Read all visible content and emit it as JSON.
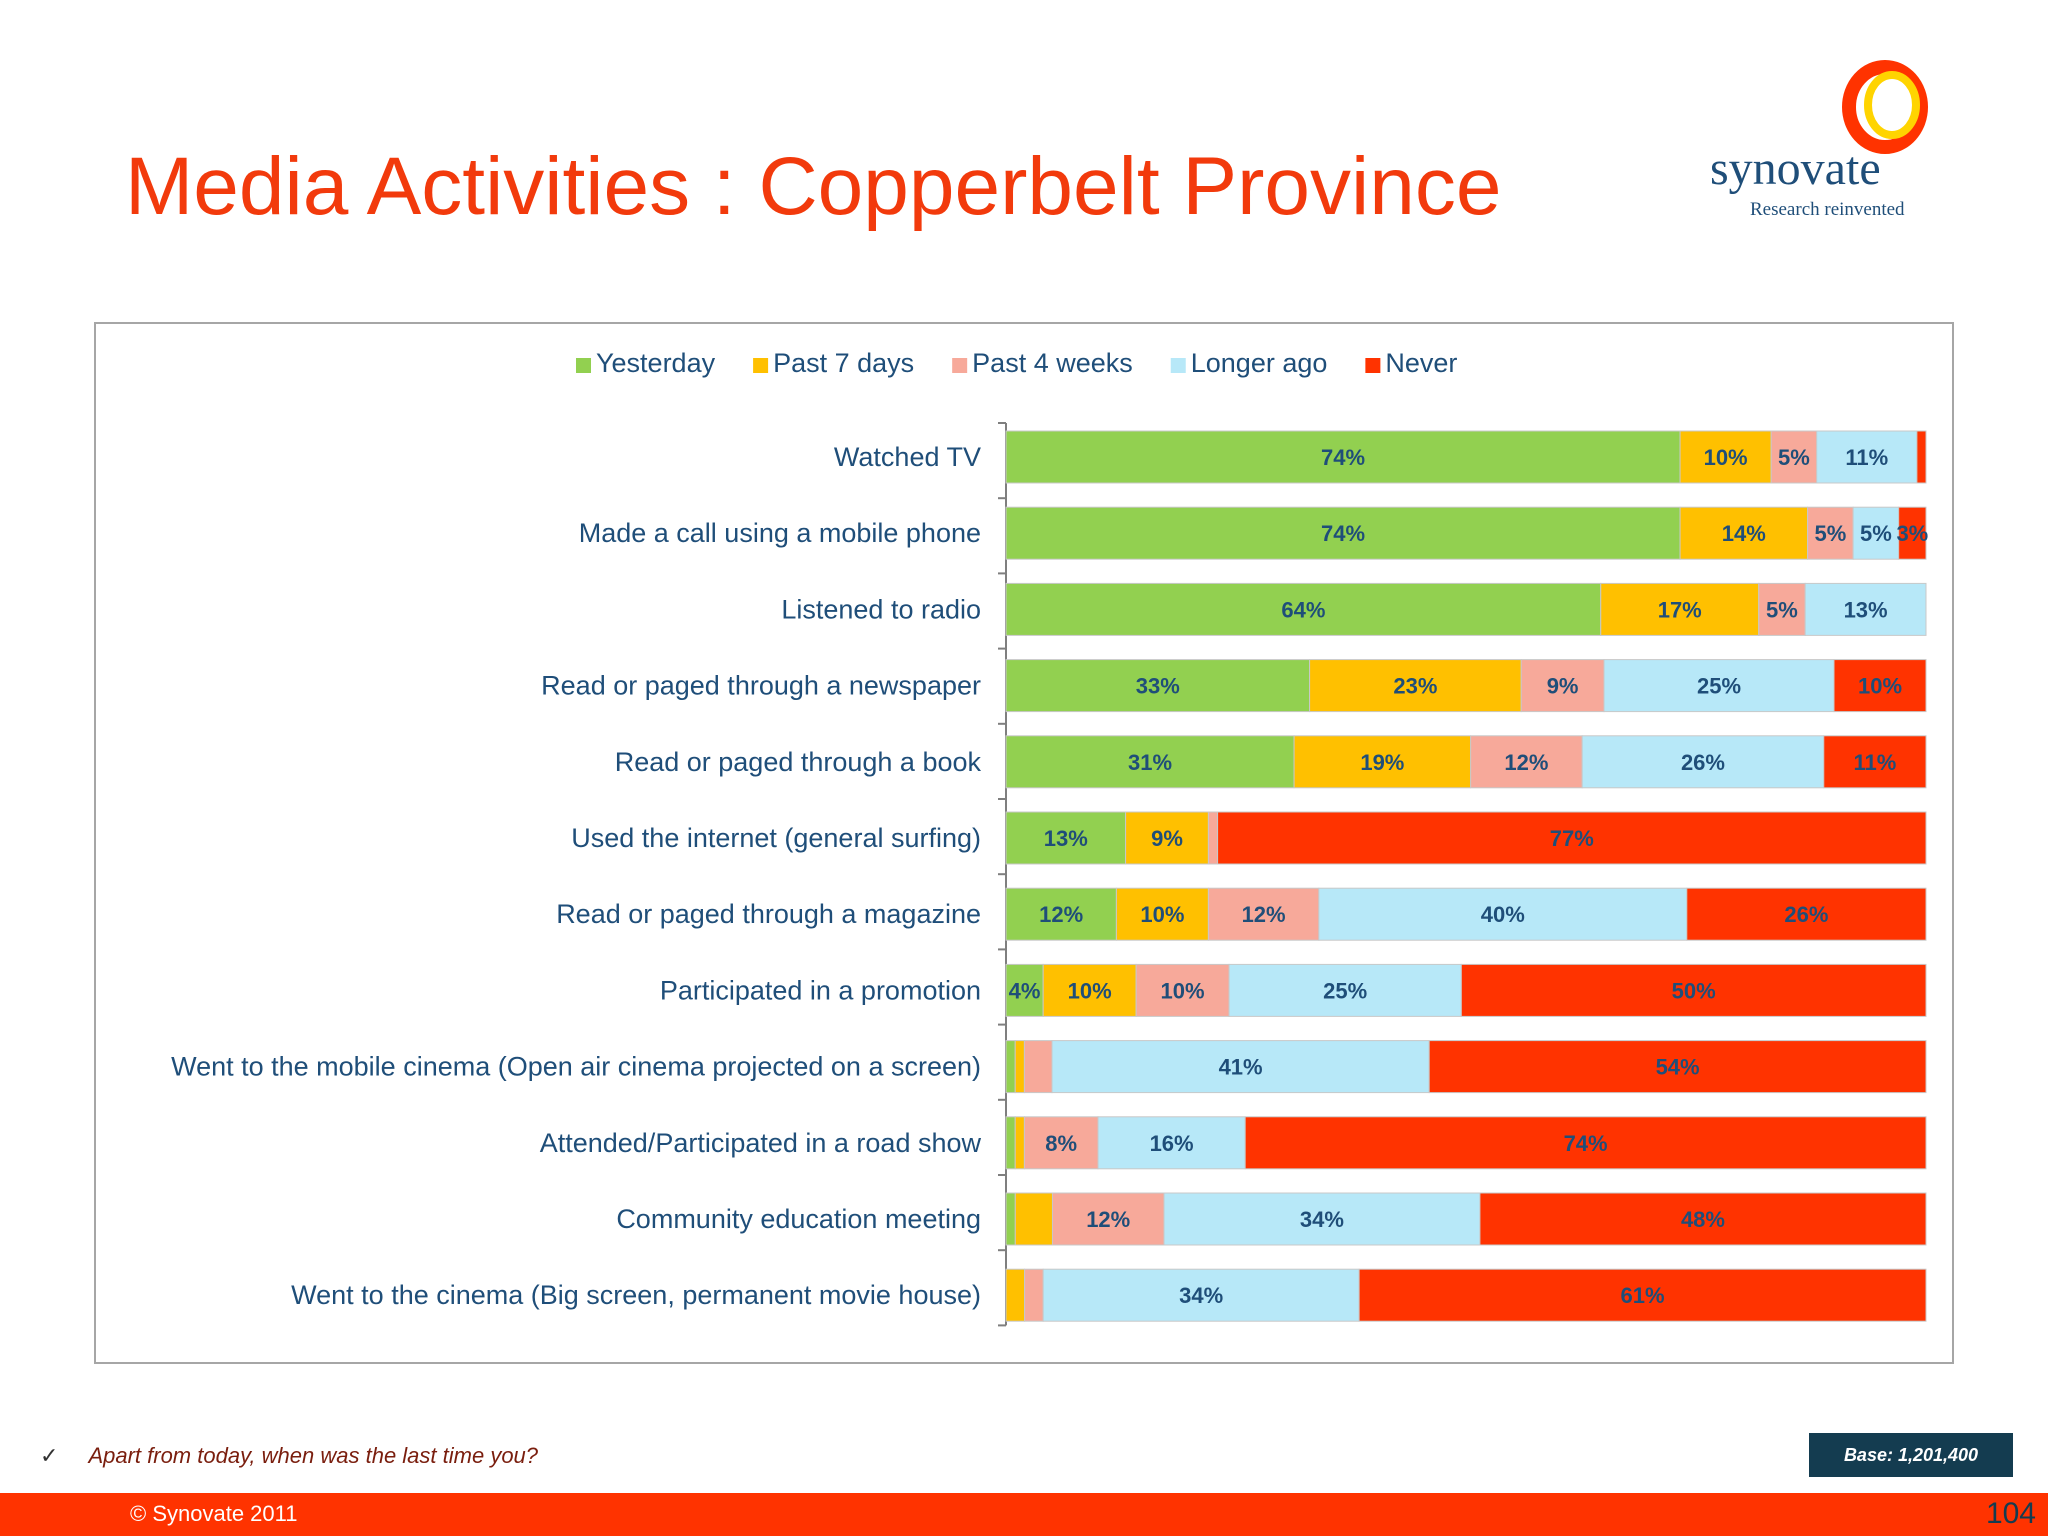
{
  "slide": {
    "title": "Media Activities : Copperbelt Province",
    "logo_name": "synovate",
    "logo_tagline": "Research reinvented",
    "question": "Apart from today, when was the last time you?",
    "base": "Base: 1,201,400",
    "copyright": "© Synovate 2011",
    "page_number": "104"
  },
  "colors": {
    "Yesterday": "#92d050",
    "Past 7 days": "#ffc000",
    "Past 4 weeks": "#f7a99a",
    "Longer ago": "#b7e8f8",
    "Never": "#ff3300",
    "title": "#f23a0c",
    "label_text": "#1f4e79",
    "value_text": "#1f4e79"
  },
  "chart_data": {
    "type": "bar",
    "orientation": "horizontal",
    "stacked": "100%",
    "title": "",
    "legend_position": "top",
    "categories": [
      "Watched TV",
      "Made a call using a mobile phone",
      "Listened to radio",
      "Read or paged through a newspaper",
      "Read or paged through a book",
      "Used the internet (general surfing)",
      "Read or paged through a magazine",
      "Participated in a promotion",
      "Went to the mobile cinema (Open air cinema projected on a screen)",
      "Attended/Participated in a road show",
      "Community education meeting",
      "Went to the cinema (Big screen, permanent movie house)"
    ],
    "series": [
      {
        "name": "Yesterday",
        "values": [
          74,
          74,
          64,
          33,
          31,
          13,
          12,
          4,
          1,
          1,
          1,
          0
        ]
      },
      {
        "name": "Past 7 days",
        "values": [
          10,
          14,
          17,
          23,
          19,
          9,
          10,
          10,
          1,
          1,
          4,
          2
        ]
      },
      {
        "name": "Past 4 weeks",
        "values": [
          5,
          5,
          5,
          9,
          12,
          1,
          12,
          10,
          3,
          8,
          12,
          2
        ]
      },
      {
        "name": "Longer ago",
        "values": [
          11,
          5,
          13,
          25,
          26,
          0,
          40,
          25,
          41,
          16,
          34,
          34
        ]
      },
      {
        "name": "Never",
        "values": [
          1,
          3,
          0,
          10,
          11,
          77,
          26,
          50,
          54,
          74,
          48,
          61
        ]
      }
    ],
    "data_labels": [
      [
        "74%",
        "10%",
        "5%",
        "11%",
        ""
      ],
      [
        "74%",
        "14%",
        "5%",
        "5%",
        "3%"
      ],
      [
        "64%",
        "17%",
        "5%",
        "13%",
        ""
      ],
      [
        "33%",
        "23%",
        "9%",
        "25%",
        "10%"
      ],
      [
        "31%",
        "19%",
        "12%",
        "26%",
        "11%"
      ],
      [
        "13%",
        "9%",
        "",
        "",
        "77%"
      ],
      [
        "12%",
        "10%",
        "12%",
        "40%",
        "26%"
      ],
      [
        "4%",
        "10%",
        "10%",
        "25%",
        "50%"
      ],
      [
        "",
        "",
        "",
        "41%",
        "54%"
      ],
      [
        "",
        "",
        "8%",
        "16%",
        "74%"
      ],
      [
        "",
        "",
        "12%",
        "34%",
        "48%"
      ],
      [
        "",
        "",
        "",
        "34%",
        "61%"
      ]
    ]
  }
}
